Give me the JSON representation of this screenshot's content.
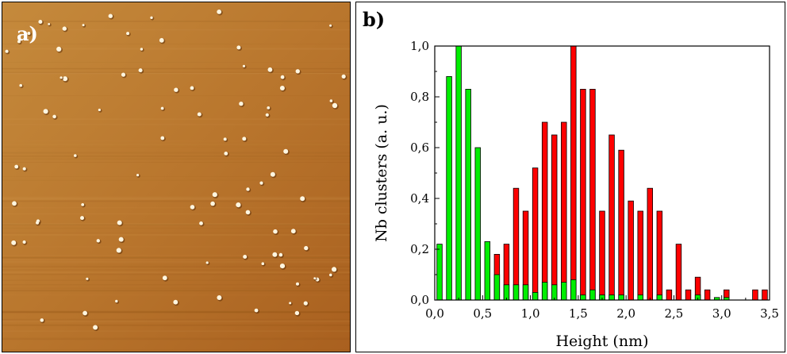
{
  "panels": {
    "a": {
      "label": "a)"
    },
    "b": {
      "label": "b)"
    }
  },
  "chart_data": {
    "type": "bar",
    "title": "",
    "xlabel": "Height (nm)",
    "ylabel": "Nb clusters (a. u.)",
    "xlim": [
      0.0,
      3.5
    ],
    "ylim": [
      0.0,
      1.0
    ],
    "xticks": [
      "0,0",
      "0,5",
      "1,0",
      "1,5",
      "2,0",
      "2,5",
      "3,0",
      "3,5"
    ],
    "yticks": [
      "0,0",
      "0,2",
      "0,4",
      "0,6",
      "0,8",
      "1,0"
    ],
    "bin_width": 0.1,
    "grid": false,
    "series": [
      {
        "color": "#ff0000",
        "x": [
          0.65,
          0.75,
          0.85,
          0.95,
          1.05,
          1.15,
          1.25,
          1.35,
          1.45,
          1.55,
          1.65,
          1.75,
          1.85,
          1.95,
          2.05,
          2.15,
          2.25,
          2.35,
          2.45,
          2.55,
          2.65,
          2.75,
          2.85,
          2.95,
          3.05,
          3.15,
          3.25,
          3.35,
          3.45
        ],
        "values": [
          0.18,
          0.22,
          0.44,
          0.35,
          0.52,
          0.7,
          0.65,
          0.7,
          1.0,
          0.83,
          0.83,
          0.35,
          0.65,
          0.59,
          0.39,
          0.35,
          0.44,
          0.35,
          0.04,
          0.22,
          0.04,
          0.09,
          0.04,
          0.0,
          0.04,
          0.0,
          0.0,
          0.04,
          0.04
        ]
      },
      {
        "color": "#00ee00",
        "x": [
          0.05,
          0.15,
          0.25,
          0.35,
          0.45,
          0.55,
          0.65,
          0.75,
          0.85,
          0.95,
          1.05,
          1.15,
          1.25,
          1.35,
          1.45,
          1.55,
          1.65,
          1.75,
          1.85,
          1.95,
          2.05,
          2.15,
          2.25,
          2.35,
          2.45,
          2.55,
          2.65,
          2.75,
          2.85,
          2.95,
          3.05
        ],
        "values": [
          0.22,
          0.88,
          1.0,
          0.83,
          0.6,
          0.23,
          0.1,
          0.06,
          0.06,
          0.06,
          0.03,
          0.07,
          0.06,
          0.07,
          0.08,
          0.02,
          0.04,
          0.02,
          0.02,
          0.02,
          0.0,
          0.02,
          0.0,
          0.02,
          0.0,
          0.0,
          0.0,
          0.02,
          0.0,
          0.01,
          0.01
        ]
      }
    ]
  }
}
